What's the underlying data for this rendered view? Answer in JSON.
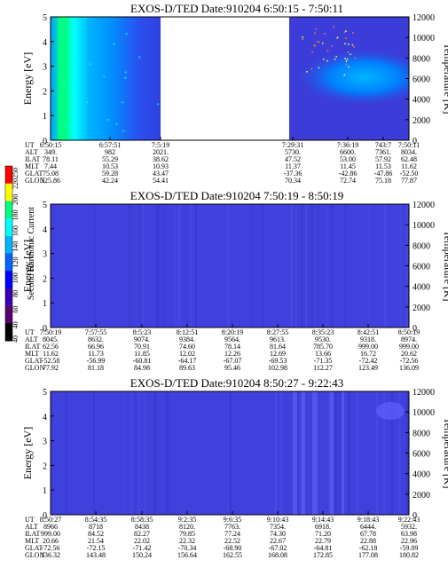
{
  "figure": {
    "colorbar": {
      "label": "Second Harmonic Current",
      "ticks": [
        "220",
        "200",
        "180",
        "160",
        "140",
        "120",
        "100",
        "80",
        "60",
        "40"
      ],
      "edge_ticks": [
        "250",
        "40"
      ],
      "colors": [
        "#000000",
        "#5a006e",
        "#3a00b4",
        "#0000ff",
        "#0064ff",
        "#00b4ff",
        "#00ffff",
        "#00ff80",
        "#ffff00",
        "#ff0000"
      ]
    }
  },
  "chart_data": [
    {
      "type": "heatmap",
      "title": "EXOS-D/TED   Date:910204  6:50:15 - 7:50:11",
      "ylabel": "Energy [eV]",
      "y2label": "Temperature [K]",
      "ylim": [
        0,
        5
      ],
      "y2lim": [
        0,
        12000
      ],
      "yticks": [
        "0",
        "1",
        "2",
        "3",
        "4",
        "5"
      ],
      "y2ticks": [
        "0",
        "2000",
        "4000",
        "6000",
        "8000",
        "10000",
        "12000"
      ],
      "data_gap": [
        "7:5:19",
        "7:29:31"
      ],
      "ephemeris": {
        "rows": [
          "UT",
          "ALT",
          "ILAT",
          "MLT",
          "GLAT",
          "GLON"
        ],
        "columns": [
          [
            "6:50:15",
            "349.",
            "78.11",
            "7.44",
            "75.08",
            "325.86"
          ],
          [
            "6:57:51",
            "982",
            "55.29",
            "10.53",
            "59.28",
            "42.24"
          ],
          [
            "7:5:19",
            "2021.",
            "38.62",
            "10.93",
            "43.47",
            "54.41"
          ],
          [
            "7:29:31",
            "5730.",
            "47.52",
            "11.37",
            "-37.36",
            "70.34"
          ],
          [
            "7:36:19",
            "6600.",
            "53.00",
            "11.45",
            "-42.86",
            "72.74"
          ],
          [
            "743:7",
            "7361.",
            "57.92",
            "11.53",
            "-47.86",
            "75.18"
          ],
          [
            "7:50:11",
            "8034.",
            "62.48",
            "11.62",
            "-52.50",
            "77.87"
          ]
        ]
      }
    },
    {
      "type": "heatmap",
      "title": "EXOS-D/TED   Date:910204  7:50:19 - 8:50:19",
      "ylabel": "Energy [eV]",
      "y2label": "Temperature [K]",
      "ylim": [
        0,
        5
      ],
      "y2lim": [
        0,
        12000
      ],
      "yticks": [
        "0",
        "1",
        "2",
        "3",
        "4",
        "5"
      ],
      "y2ticks": [
        "0",
        "2000",
        "4000",
        "6000",
        "8000",
        "10000",
        "12000"
      ],
      "ephemeris": {
        "rows": [
          "UT",
          "ALT",
          "ILAT",
          "MLT",
          "GLAT",
          "GLON"
        ],
        "columns": [
          [
            "7:50:19",
            "8045.",
            "62.56",
            "11.62",
            "-52.58",
            "77.92"
          ],
          [
            "7:57:55",
            "8632.",
            "66.96",
            "11.73",
            "-56.99",
            "81.18"
          ],
          [
            "8:5:23",
            "9074.",
            "70.91",
            "11.85",
            "-60.81",
            "84.98"
          ],
          [
            "8:12:51",
            "9384.",
            "74.60",
            "12.02",
            "-64.17",
            "89.63"
          ],
          [
            "8:20:19",
            "9564.",
            "78.14",
            "12.26",
            "-67.07",
            "95.46"
          ],
          [
            "8:27:55",
            "9613.",
            "81.64",
            "12.69",
            "-69.53",
            "102.98"
          ],
          [
            "8:35:23",
            "9530.",
            "785.70",
            "13.66",
            "-71.35",
            "112.27"
          ],
          [
            "8:42:51",
            "9318.",
            "999.00",
            "16.72",
            "-72.42",
            "123.49"
          ],
          [
            "8:50:19",
            "8974.",
            "999.00",
            "20.62",
            "-72.56",
            "136.09"
          ]
        ]
      }
    },
    {
      "type": "heatmap",
      "title": "EXOS-D/TED   Date:910204  8:50:27 - 9:22:43",
      "ylabel": "Energy [eV]",
      "y2label": "Temperature [K]",
      "ylim": [
        0,
        5
      ],
      "y2lim": [
        0,
        12000
      ],
      "yticks": [
        "0",
        "1",
        "2",
        "3",
        "4",
        "5"
      ],
      "y2ticks": [
        "0",
        "2000",
        "4000",
        "6000",
        "8000",
        "10000",
        "12000"
      ],
      "ephemeris": {
        "rows": [
          "UT",
          "ALT",
          "ILAT",
          "MLT",
          "GLAT",
          "GLON"
        ],
        "columns": [
          [
            "8:50:27",
            "8966",
            "999.00",
            "20.66",
            "-72.56",
            "136.32"
          ],
          [
            "8:54:35",
            "8718",
            "84.52",
            "21.54",
            "-72.15",
            "143.48"
          ],
          [
            "8:58:35",
            "8438",
            "82.27",
            "22.02",
            "-71.42",
            "150.24"
          ],
          [
            "9:2:35",
            "8120.",
            "79.85",
            "22.32",
            "-70.34",
            "156.64"
          ],
          [
            "9:6:35",
            "7763.",
            "77.24",
            "22.52",
            "-68.90",
            "162.55"
          ],
          [
            "9:10:43",
            "7354.",
            "74.30",
            "22.67",
            "-67.02",
            "168.08"
          ],
          [
            "9:14:43",
            "6918.",
            "71.20",
            "22.79",
            "-64.81",
            "172.85"
          ],
          [
            "9:18:43",
            "6444.",
            "67.78",
            "22.88",
            "-62.18",
            "177.08"
          ],
          [
            "9:22:43",
            "5932.",
            "63.98",
            "22.96",
            "-59.09",
            "180.82"
          ]
        ]
      }
    }
  ]
}
